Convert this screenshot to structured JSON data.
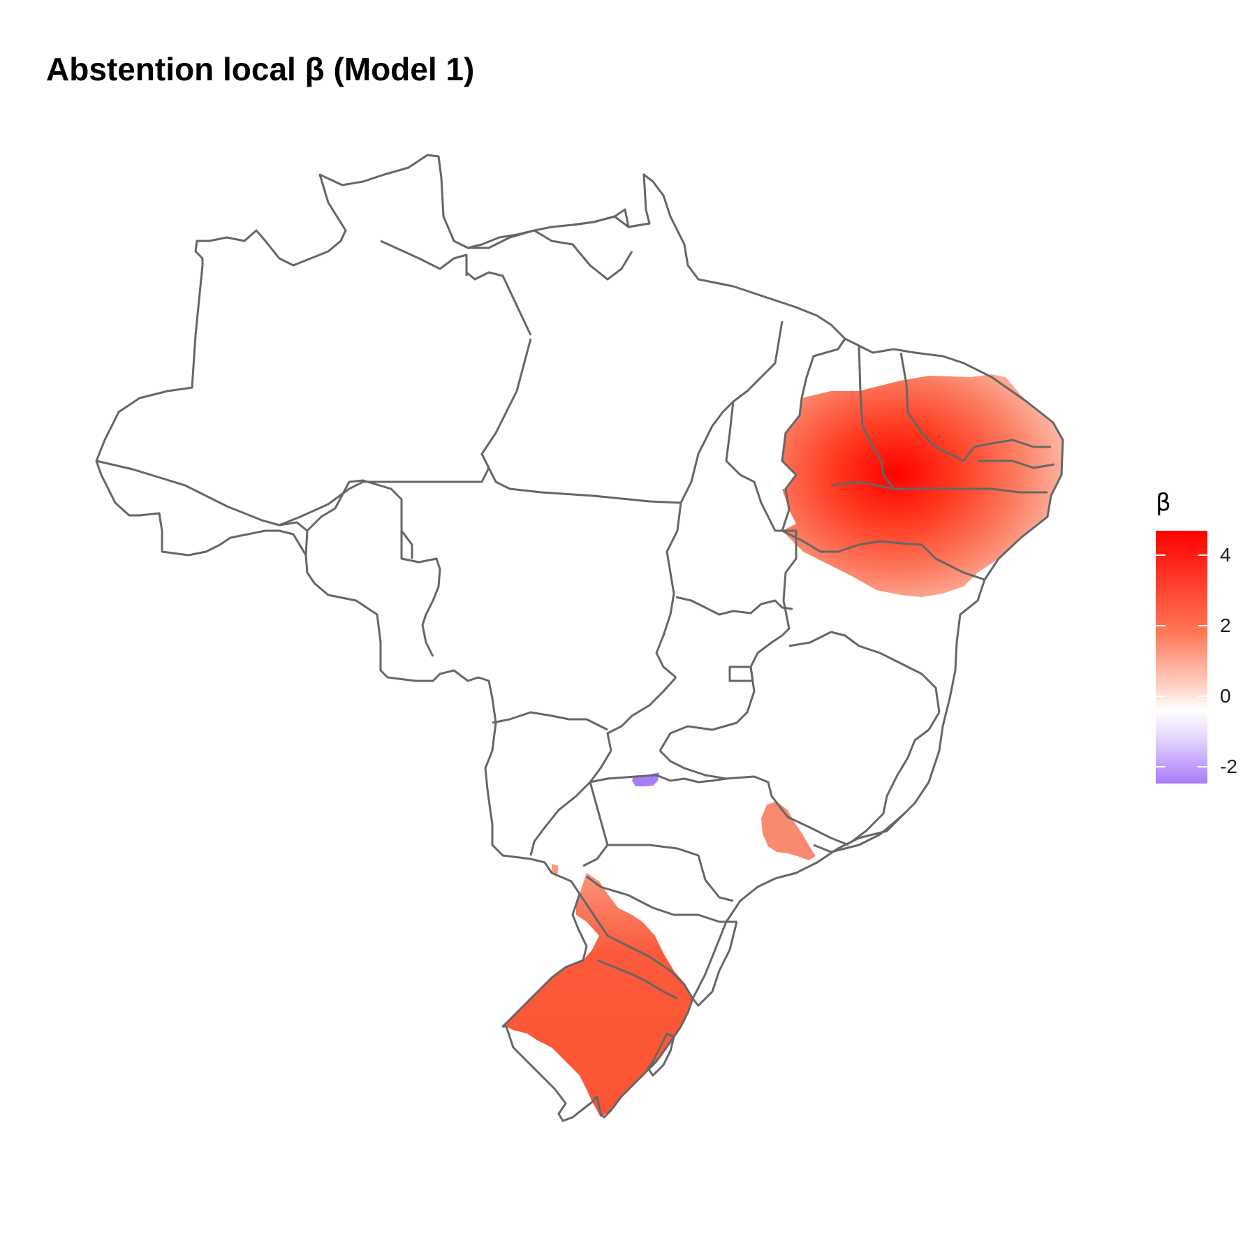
{
  "title": "Abstention local β (Model 1)",
  "legend": {
    "title": "β",
    "ticks": [
      {
        "label": "4",
        "value": 4
      },
      {
        "label": "2",
        "value": 2
      },
      {
        "label": "0",
        "value": 0
      },
      {
        "label": "-2",
        "value": -2
      }
    ],
    "range": [
      -2.4,
      4.7
    ],
    "colors": {
      "high": "#ff0000",
      "mid": "#ffffff",
      "low": "#a77cf8"
    }
  },
  "map": {
    "border_color": "#666666",
    "regions": [
      {
        "name": "northeast-core",
        "color": "#ff0000"
      },
      {
        "name": "northeast-ring",
        "color": "#ff5a3c"
      },
      {
        "name": "northeast-edge",
        "color": "#fc9e88"
      },
      {
        "name": "south",
        "color": "#fb5636"
      },
      {
        "name": "southeast-spot",
        "color": "#f98a70"
      },
      {
        "name": "negative-spot",
        "color": "#a77cf8"
      }
    ]
  }
}
